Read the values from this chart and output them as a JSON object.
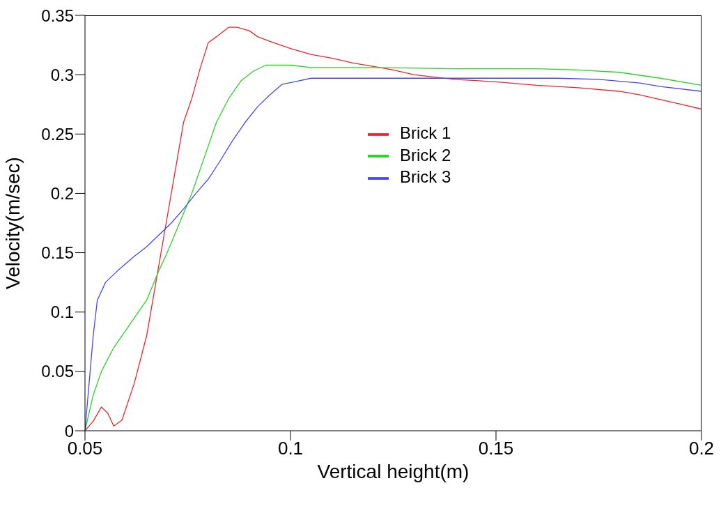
{
  "chart_data": {
    "type": "line",
    "xlabel": "Vertical height(m)",
    "ylabel": "Velocity(m/sec)",
    "xlim": [
      0.05,
      0.2
    ],
    "xticks": [
      0.05,
      0.1,
      0.15,
      0.2
    ],
    "ylim": [
      0,
      0.35
    ],
    "yticks": [
      0,
      0.05,
      0.1,
      0.15,
      0.2,
      0.25,
      0.3,
      0.35
    ],
    "grid": false,
    "legend": "top",
    "marker": "none",
    "line_style": "solid",
    "series": [
      {
        "name": "Brick 1",
        "color": "#e8262b",
        "x": [
          0.05,
          0.052,
          0.054,
          0.0555,
          0.057,
          0.059,
          0.062,
          0.065,
          0.068,
          0.07,
          0.072,
          0.074,
          0.076,
          0.078,
          0.08,
          0.082,
          0.085,
          0.087,
          0.09,
          0.092,
          0.095,
          0.1,
          0.105,
          0.11,
          0.115,
          0.12,
          0.125,
          0.13,
          0.135,
          0.14,
          0.15,
          0.16,
          0.17,
          0.18,
          0.185,
          0.19,
          0.195,
          0.2
        ],
        "values": [
          0,
          0.008,
          0.02,
          0.015,
          0.004,
          0.009,
          0.04,
          0.08,
          0.14,
          0.18,
          0.22,
          0.26,
          0.28,
          0.305,
          0.327,
          0.332,
          0.34,
          0.34,
          0.337,
          0.332,
          0.328,
          0.322,
          0.317,
          0.314,
          0.31,
          0.307,
          0.304,
          0.3,
          0.298,
          0.296,
          0.294,
          0.291,
          0.289,
          0.286,
          0.283,
          0.279,
          0.275,
          0.271
        ]
      },
      {
        "name": "Brick 2",
        "color": "#27d327",
        "x": [
          0.05,
          0.052,
          0.054,
          0.057,
          0.06,
          0.063,
          0.065,
          0.068,
          0.07,
          0.073,
          0.076,
          0.079,
          0.082,
          0.085,
          0.088,
          0.091,
          0.094,
          0.1,
          0.105,
          0.12,
          0.14,
          0.16,
          0.17,
          0.18,
          0.19,
          0.2
        ],
        "values": [
          0,
          0.03,
          0.05,
          0.07,
          0.085,
          0.1,
          0.11,
          0.135,
          0.15,
          0.175,
          0.2,
          0.23,
          0.26,
          0.28,
          0.295,
          0.303,
          0.308,
          0.308,
          0.306,
          0.306,
          0.305,
          0.305,
          0.304,
          0.302,
          0.297,
          0.291
        ]
      },
      {
        "name": "Brick 3",
        "color": "#4646f0",
        "x": [
          0.05,
          0.051,
          0.052,
          0.053,
          0.055,
          0.058,
          0.062,
          0.065,
          0.068,
          0.071,
          0.074,
          0.077,
          0.08,
          0.083,
          0.086,
          0.089,
          0.092,
          0.095,
          0.098,
          0.101,
          0.105,
          0.12,
          0.14,
          0.165,
          0.175,
          0.185,
          0.19,
          0.2
        ],
        "values": [
          0,
          0.04,
          0.08,
          0.11,
          0.125,
          0.135,
          0.147,
          0.155,
          0.165,
          0.175,
          0.187,
          0.2,
          0.212,
          0.228,
          0.245,
          0.26,
          0.273,
          0.283,
          0.292,
          0.294,
          0.297,
          0.297,
          0.297,
          0.297,
          0.296,
          0.293,
          0.29,
          0.286
        ]
      }
    ]
  }
}
